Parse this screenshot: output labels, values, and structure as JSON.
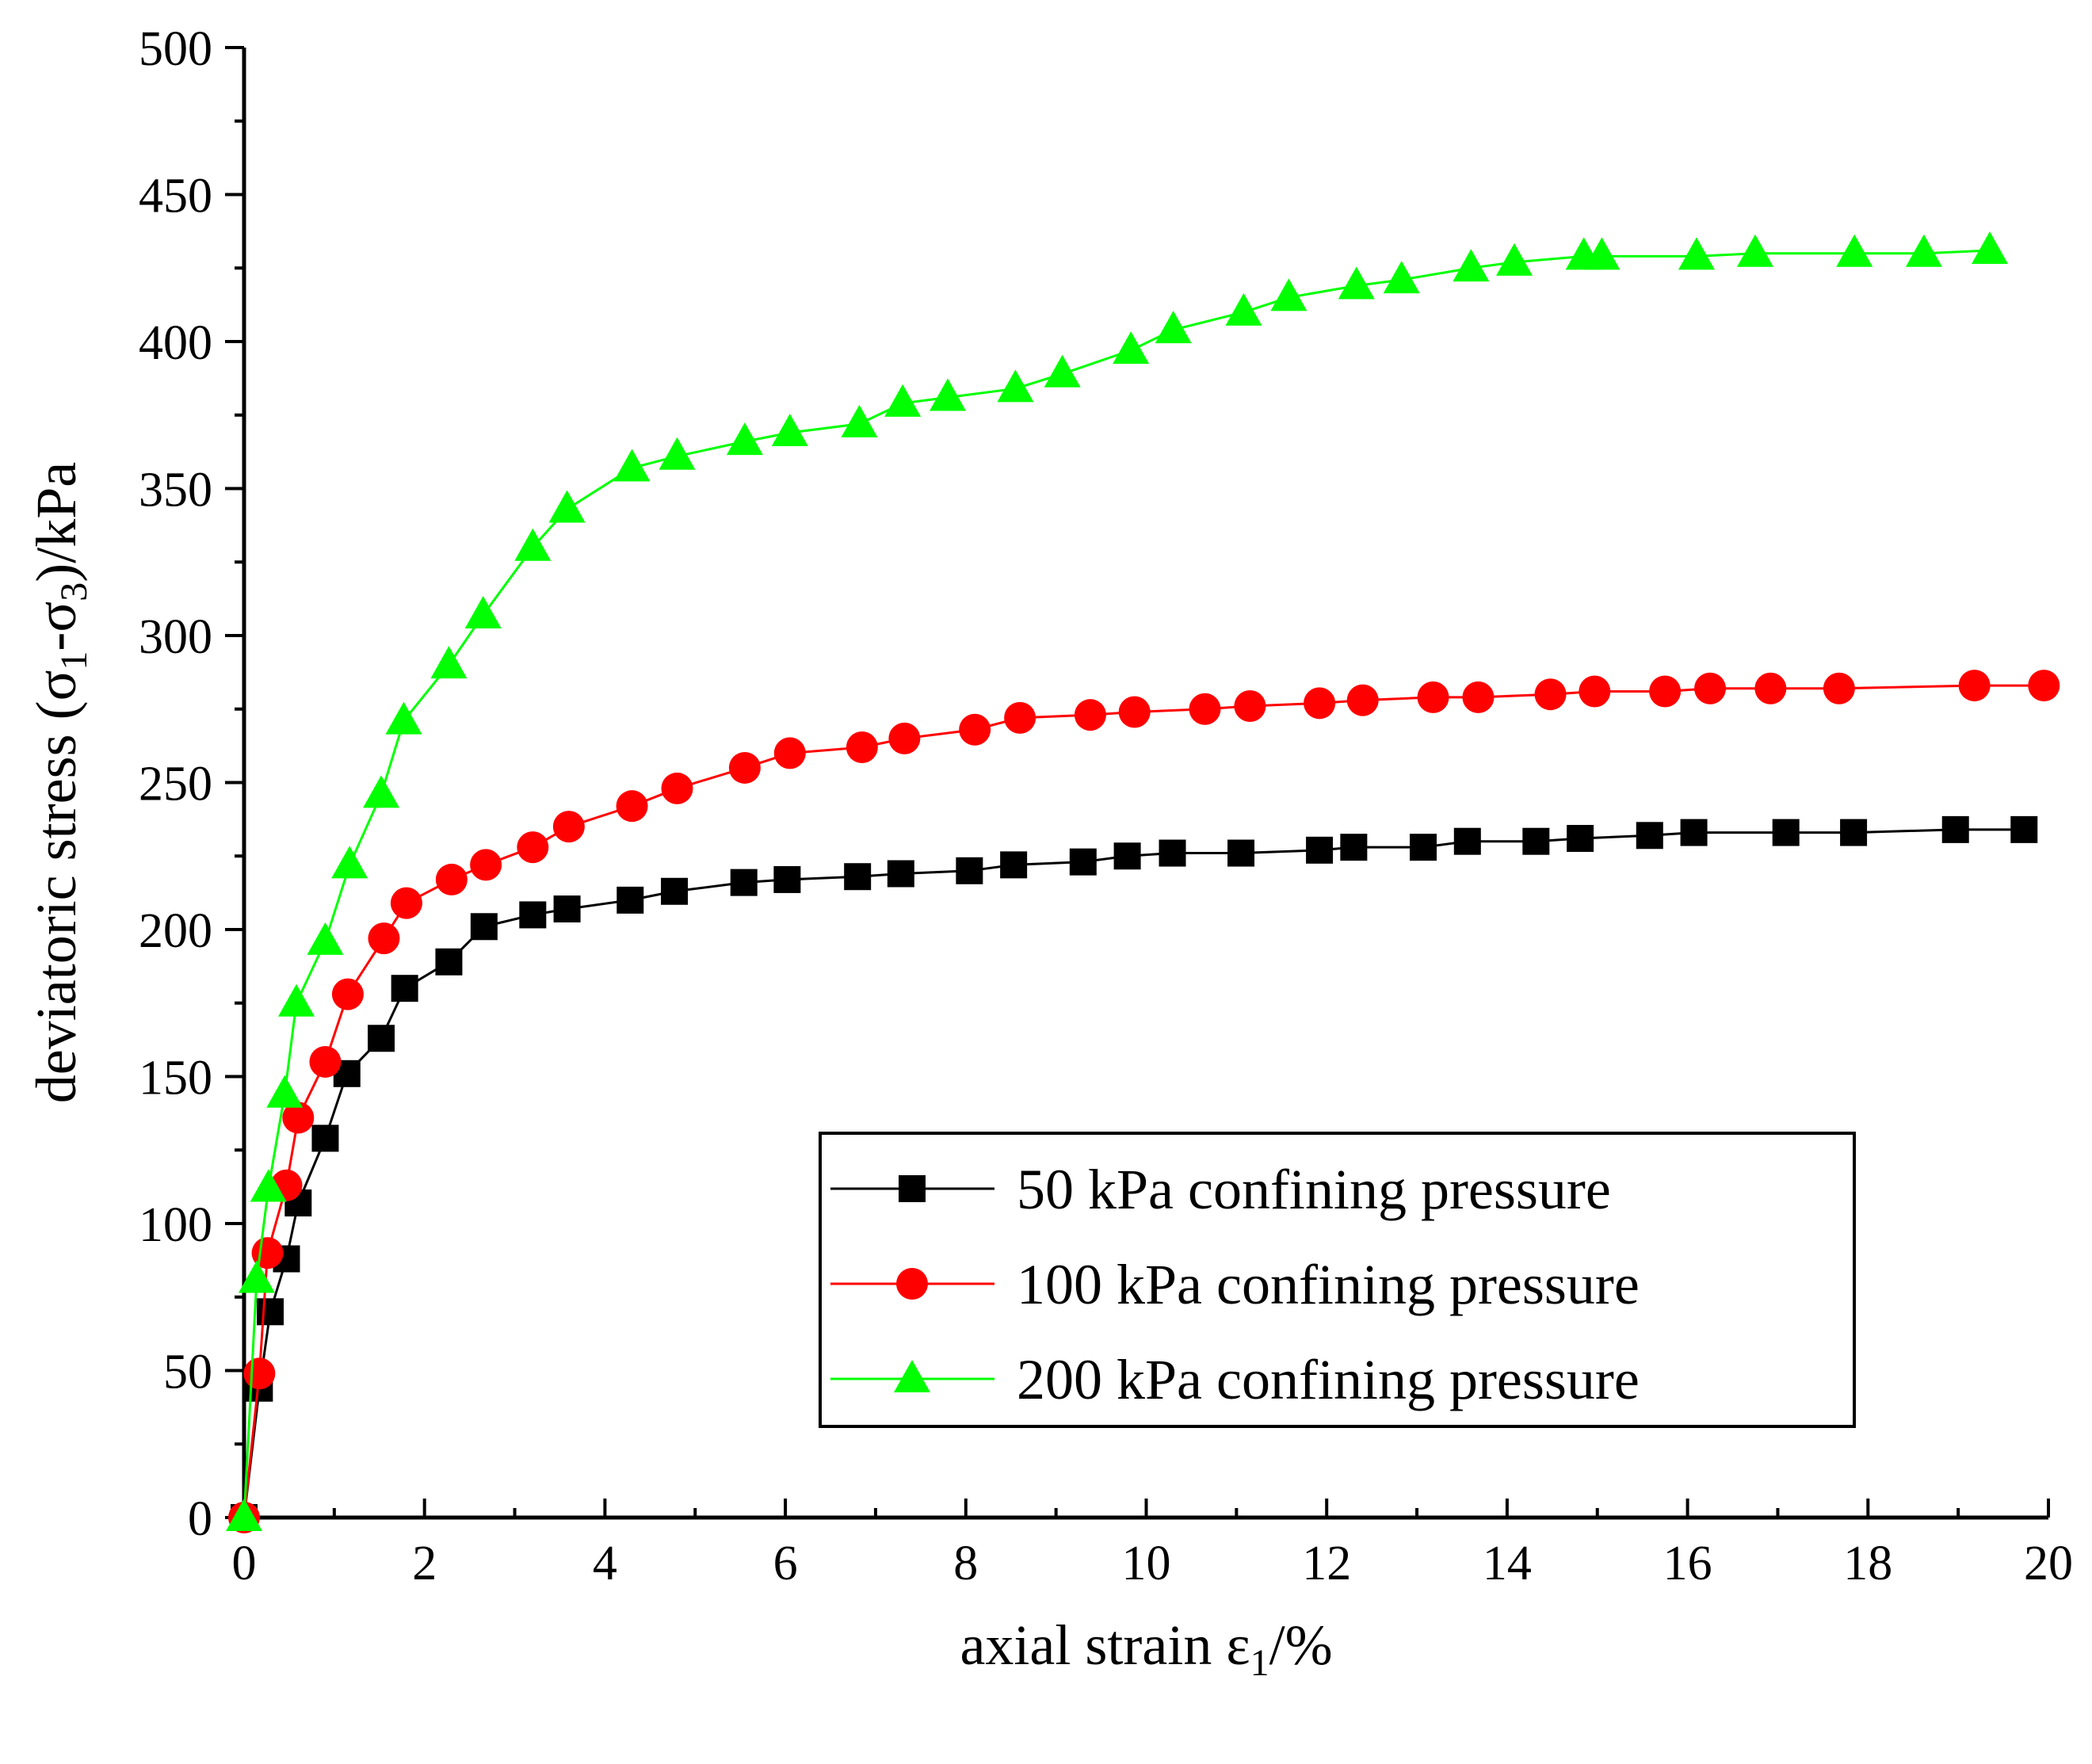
{
  "chart_data": {
    "type": "line",
    "xlabel": "axial strain ε",
    "xlabel_sub": "1",
    "xlabel_suffix": "/%",
    "ylabel_parts": [
      "deviatoric stress (σ",
      "1",
      "-σ",
      "3",
      ")/kPa"
    ],
    "xlim": [
      0,
      20
    ],
    "ylim": [
      0,
      500
    ],
    "xticks": [
      "0",
      "2",
      "4",
      "6",
      "8",
      "10",
      "12",
      "14",
      "16",
      "18",
      "20"
    ],
    "yticks": [
      "0",
      "50",
      "100",
      "150",
      "200",
      "250",
      "300",
      "350",
      "400",
      "450",
      "500"
    ],
    "grid": false,
    "legend_position": "bottom-right",
    "series": [
      {
        "name": "50 kPa confining pressure",
        "color": "#000000",
        "marker": "square",
        "x": [
          0.0,
          0.17,
          0.29,
          0.47,
          0.6,
          0.9,
          1.14,
          1.52,
          1.78,
          2.27,
          2.66,
          3.2,
          3.58,
          4.28,
          4.77,
          5.54,
          6.02,
          6.8,
          7.28,
          8.04,
          8.53,
          9.3,
          9.79,
          10.29,
          11.05,
          11.92,
          12.3,
          13.07,
          13.56,
          14.32,
          14.81,
          15.58,
          16.07,
          17.09,
          17.84,
          18.97,
          19.73
        ],
        "y": [
          0,
          44,
          70,
          88,
          107,
          129,
          151,
          163,
          180,
          189,
          201,
          205,
          207,
          210,
          213,
          216,
          217,
          218,
          219,
          220,
          222,
          223,
          225,
          226,
          226,
          227,
          228,
          228,
          230,
          230,
          231,
          232,
          233,
          233,
          233,
          234,
          234
        ]
      },
      {
        "name": "100 kPa confining pressure",
        "color": "#ff0000",
        "marker": "circle",
        "x": [
          0.0,
          0.17,
          0.26,
          0.47,
          0.6,
          0.9,
          1.15,
          1.55,
          1.8,
          2.3,
          2.68,
          3.2,
          3.6,
          4.3,
          4.8,
          5.55,
          6.05,
          6.85,
          7.32,
          8.1,
          8.6,
          9.38,
          9.87,
          10.65,
          11.15,
          11.92,
          12.4,
          13.18,
          13.68,
          14.48,
          14.97,
          15.75,
          16.25,
          16.92,
          17.68,
          19.18,
          19.95
        ],
        "y": [
          0,
          49,
          90,
          113,
          136,
          155,
          178,
          197,
          209,
          217,
          222,
          228,
          235,
          242,
          248,
          255,
          260,
          262,
          265,
          268,
          272,
          273,
          274,
          275,
          276,
          277,
          278,
          279,
          279,
          280,
          281,
          281,
          282,
          282,
          282,
          283,
          283
        ]
      },
      {
        "name": "200 kPa confining pressure",
        "color": "#00ff00",
        "marker": "triangle",
        "x": [
          0.0,
          0.14,
          0.27,
          0.45,
          0.58,
          0.9,
          1.17,
          1.52,
          1.77,
          2.27,
          2.65,
          3.2,
          3.58,
          4.3,
          4.8,
          5.55,
          6.05,
          6.82,
          7.3,
          7.8,
          8.55,
          9.07,
          9.83,
          10.3,
          11.08,
          11.58,
          12.33,
          12.83,
          13.6,
          14.08,
          14.85,
          15.05,
          16.1,
          16.75,
          17.85,
          18.62,
          19.35
        ],
        "y": [
          0,
          81,
          112,
          144,
          175,
          196,
          222,
          246,
          271,
          290,
          307,
          330,
          343,
          357,
          361,
          366,
          369,
          372,
          379,
          381,
          384,
          389,
          397,
          404,
          410,
          415,
          419,
          421,
          425,
          427,
          429,
          429,
          429,
          430,
          430,
          430,
          431
        ]
      }
    ]
  }
}
